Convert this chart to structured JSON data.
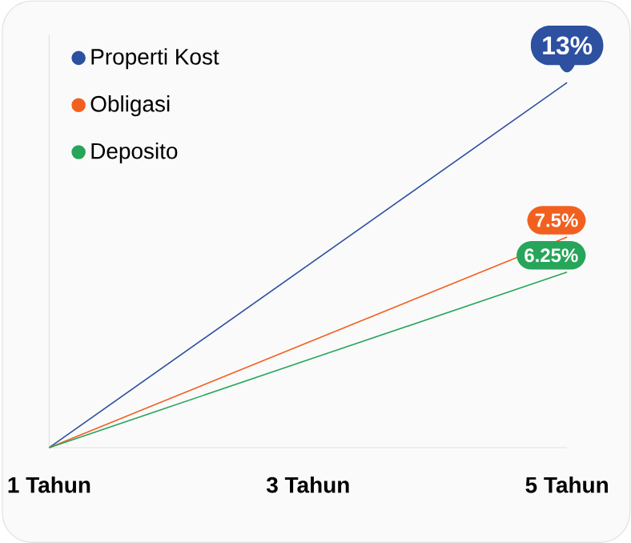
{
  "chart_data": {
    "type": "line",
    "categories": [
      "1 Tahun",
      "3 Tahun",
      "5 Tahun"
    ],
    "tick_labels": "x",
    "legend": "top left",
    "grid": false,
    "line_style": "solid",
    "series": [
      {
        "name": "Properti Kost",
        "color": "#2d50a0",
        "values": [
          0,
          6.5,
          13
        ],
        "value_labels": [
          null,
          null,
          "13%"
        ]
      },
      {
        "name": "Obligasi",
        "color": "#f2601f",
        "values": [
          0,
          3.75,
          7.5
        ],
        "value_labels": [
          null,
          null,
          "7.5%"
        ]
      },
      {
        "name": "Deposito",
        "color": "#27a55a",
        "values": [
          0,
          3.125,
          6.25
        ],
        "value_labels": [
          null,
          null,
          "6.25%"
        ]
      }
    ]
  }
}
